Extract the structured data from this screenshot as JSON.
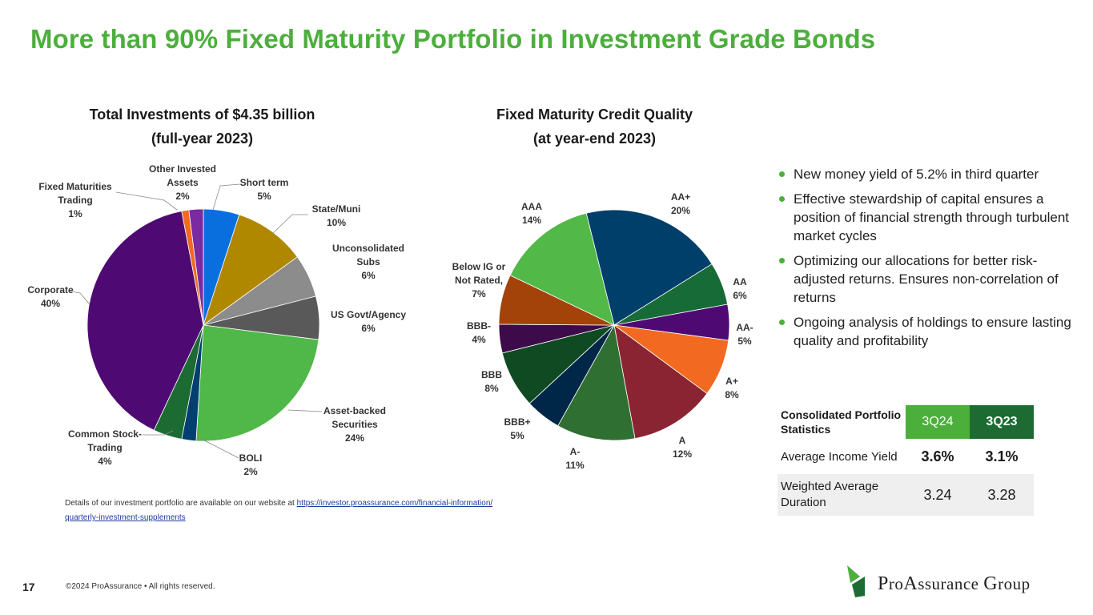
{
  "page": {
    "title": "More than 90% Fixed Maturity Portfolio in Investment Grade Bonds",
    "page_number": "17",
    "copyright": "©2024 ProAssurance • All rights reserved.",
    "footnote_text": "Details of our investment portfolio are available on our website at ",
    "footnote_link_1": "https://investor.proassurance.com/financial-information/",
    "footnote_link_2": "quarterly-investment-supplements",
    "logo_text_pro": "PRO",
    "logo_text_rest": "ASSURANCE GROUP"
  },
  "colors": {
    "accent_green": "#4caf3c",
    "dark_green": "#1d6b33"
  },
  "chart_data": [
    {
      "type": "pie",
      "title_line1": "Total Investments of $4.35 billion",
      "title_line2": "(full-year 2023)",
      "slices": [
        {
          "label": "Short term",
          "value": 5,
          "display": "5%",
          "color": "#0a6fde"
        },
        {
          "label": "State/Muni",
          "value": 10,
          "display": "10%",
          "color": "#b08800"
        },
        {
          "label": "Unconsolidated Subs",
          "value": 6,
          "display": "6%",
          "color": "#8c8c8c"
        },
        {
          "label": "US Govt/Agency",
          "value": 6,
          "display": "6%",
          "color": "#595959"
        },
        {
          "label": "Asset-backed Securities",
          "value": 24,
          "display": "24%",
          "color": "#4fb848"
        },
        {
          "label": "BOLI",
          "value": 2,
          "display": "2%",
          "color": "#003f6f"
        },
        {
          "label": "Common Stock-Trading",
          "value": 4,
          "display": "4%",
          "color": "#1c6b33"
        },
        {
          "label": "Corporate",
          "value": 40,
          "display": "40%",
          "color": "#4e0a72"
        },
        {
          "label": "Fixed Maturities Trading",
          "value": 1,
          "display": "1%",
          "color": "#f26a21"
        },
        {
          "label": "Other Invested Assets",
          "value": 2,
          "display": "2%",
          "color": "#7b2aa1"
        }
      ]
    },
    {
      "type": "pie",
      "title_line1": "Fixed Maturity Credit Quality",
      "title_line2": "(at year-end 2023)",
      "slices": [
        {
          "label": "AA+",
          "value": 20,
          "display": "20%",
          "color": "#003f6a"
        },
        {
          "label": "AA",
          "value": 6,
          "display": "6%",
          "color": "#176b37"
        },
        {
          "label": "AA-",
          "value": 5,
          "display": "5%",
          "color": "#4e0a72"
        },
        {
          "label": "A+",
          "value": 8,
          "display": "8%",
          "color": "#f26a21"
        },
        {
          "label": "A",
          "value": 12,
          "display": "12%",
          "color": "#8b2432"
        },
        {
          "label": "A-",
          "value": 11,
          "display": "11%",
          "color": "#2f6f32"
        },
        {
          "label": "BBB+",
          "value": 5,
          "display": "5%",
          "color": "#002747"
        },
        {
          "label": "BBB",
          "value": 8,
          "display": "8%",
          "color": "#0f4a22"
        },
        {
          "label": "BBB-",
          "value": 4,
          "display": "4%",
          "color": "#3d0b4a"
        },
        {
          "label": "Below IG or Not Rated,",
          "value": 7,
          "display": "7%",
          "color": "#a3430a"
        },
        {
          "label": "AAA",
          "value": 14,
          "display": "14%",
          "color": "#52b848"
        }
      ]
    }
  ],
  "bullets": [
    "New money yield of 5.2% in third quarter",
    "Effective stewardship of capital ensures a position of financial strength through turbulent market cycles",
    "Optimizing our allocations for better risk-adjusted returns. Ensures non-correlation of returns",
    "Ongoing analysis of holdings to ensure lasting quality and profitability"
  ],
  "stats_table": {
    "header_label": "Consolidated Portfolio Statistics",
    "col1": "3Q24",
    "col2": "3Q23",
    "rows": [
      {
        "label": "Average Income Yield",
        "v1": "3.6%",
        "v2": "3.1%"
      },
      {
        "label": "Weighted Average Duration",
        "v1": "3.24",
        "v2": "3.28"
      }
    ]
  }
}
